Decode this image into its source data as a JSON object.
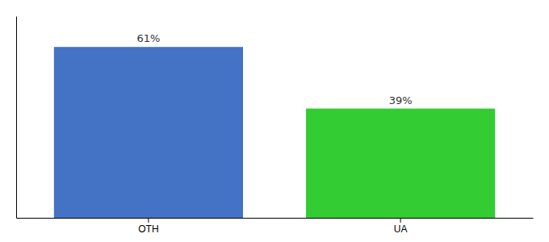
{
  "chart_data": {
    "type": "bar",
    "categories": [
      "OTH",
      "UA"
    ],
    "values": [
      61,
      39
    ],
    "value_labels": [
      "61%",
      "39%"
    ],
    "data_labels": true,
    "colors": [
      "#4472c4",
      "#33cc33"
    ],
    "ylim": [
      0,
      72
    ],
    "tick_labels": "x"
  }
}
